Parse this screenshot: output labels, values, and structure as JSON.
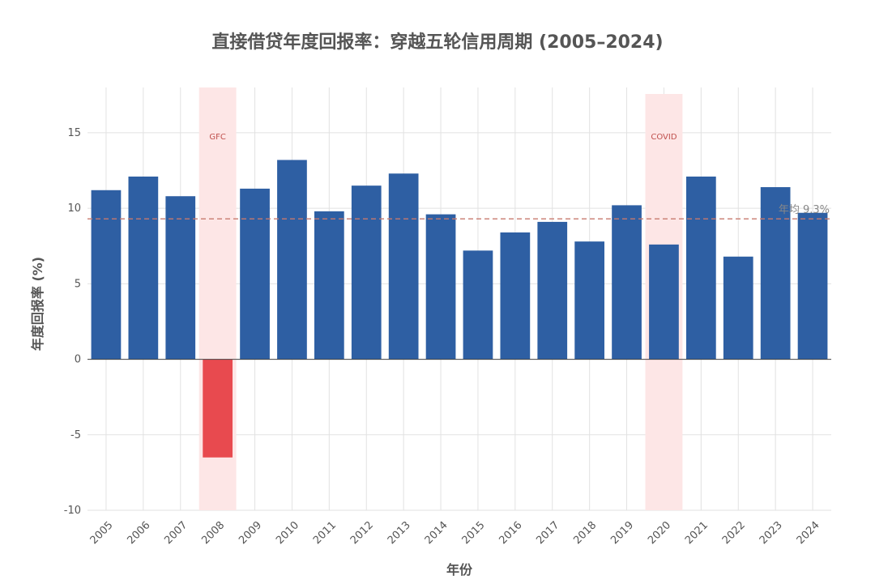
{
  "chart_data": {
    "type": "bar",
    "title": "直接借贷年度回报率：穿越五轮信用周期 (2005–2024)",
    "xlabel": "年份",
    "ylabel": "年度回报率 (%)",
    "categories": [
      "2005",
      "2006",
      "2007",
      "2008",
      "2009",
      "2010",
      "2011",
      "2012",
      "2013",
      "2014",
      "2015",
      "2016",
      "2017",
      "2018",
      "2019",
      "2020",
      "2021",
      "2022",
      "2023",
      "2024"
    ],
    "values": [
      11.2,
      12.1,
      10.8,
      -6.5,
      11.3,
      13.2,
      9.8,
      11.5,
      12.3,
      9.6,
      7.2,
      8.4,
      9.1,
      7.8,
      10.2,
      7.6,
      12.1,
      6.8,
      11.4,
      9.7
    ],
    "ylim": [
      -10,
      18
    ],
    "yticks": [
      -10,
      -5,
      0,
      5,
      10,
      15
    ],
    "grid": true,
    "reference_line": {
      "value": 9.3,
      "label": "年均 9.3%",
      "color": "#c87a6e"
    },
    "shaded_periods": [
      {
        "label": "GFC",
        "category": "2008"
      },
      {
        "label": "COVID",
        "category": "2020"
      }
    ],
    "colors": {
      "positive": "#2e5fa3",
      "negative": "#e84a4f",
      "band": "#fde6e6",
      "band_text": "#c0504d"
    }
  }
}
